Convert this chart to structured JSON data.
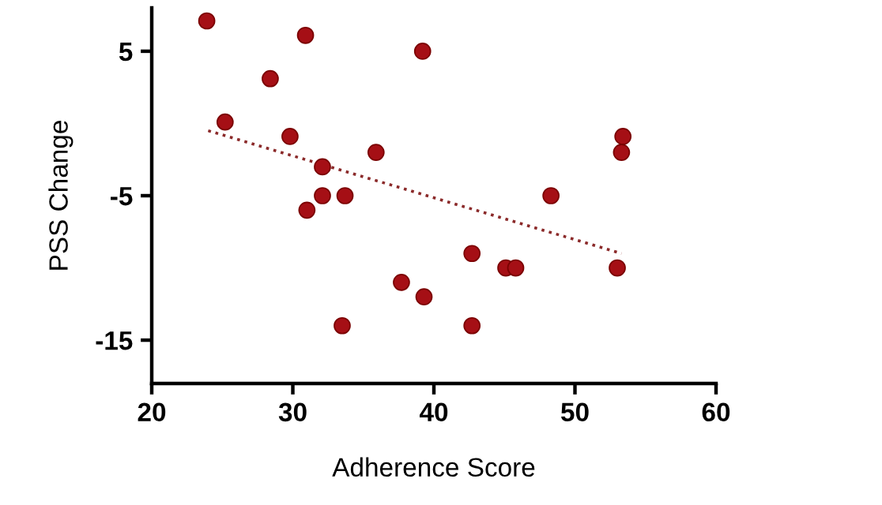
{
  "chart_data": {
    "type": "scatter",
    "xlabel": "Adherence Score",
    "ylabel": "PSS Change",
    "xlim": [
      20,
      60
    ],
    "xticks": [
      20,
      30,
      40,
      50,
      60
    ],
    "ylim": [
      -18,
      8
    ],
    "yticks": [
      5,
      {
        "value": -5,
        "label": "-5"
      },
      {
        "value": -15,
        "label": "-15"
      }
    ],
    "grid": false,
    "legend": false,
    "series": [
      {
        "marker": "circle",
        "color": "#a50f15",
        "x": [
          23.9,
          30.9,
          39.2,
          28.4,
          25.2,
          29.8,
          35.9,
          32.1,
          32.1,
          33.7,
          31.0,
          53.4,
          53.3,
          48.3,
          42.7,
          45.1,
          45.8,
          53.0,
          37.7,
          39.3,
          33.5,
          42.7
        ],
        "values": [
          7.1,
          6.1,
          5.0,
          3.1,
          0.1,
          -0.9,
          -2.0,
          -3.0,
          -5.0,
          -5.0,
          -6.0,
          -0.9,
          -2.0,
          -5.0,
          -9.0,
          -10.0,
          -10.0,
          -10.0,
          -11.0,
          -12.0,
          -14.0,
          -14.0
        ]
      },
      {
        "type": "line",
        "marker": "none",
        "color": "#8b2a2a",
        "line_style": "dotted",
        "x": [
          24.0,
          53.3
        ],
        "values": [
          -0.5,
          -9.0
        ]
      }
    ]
  }
}
